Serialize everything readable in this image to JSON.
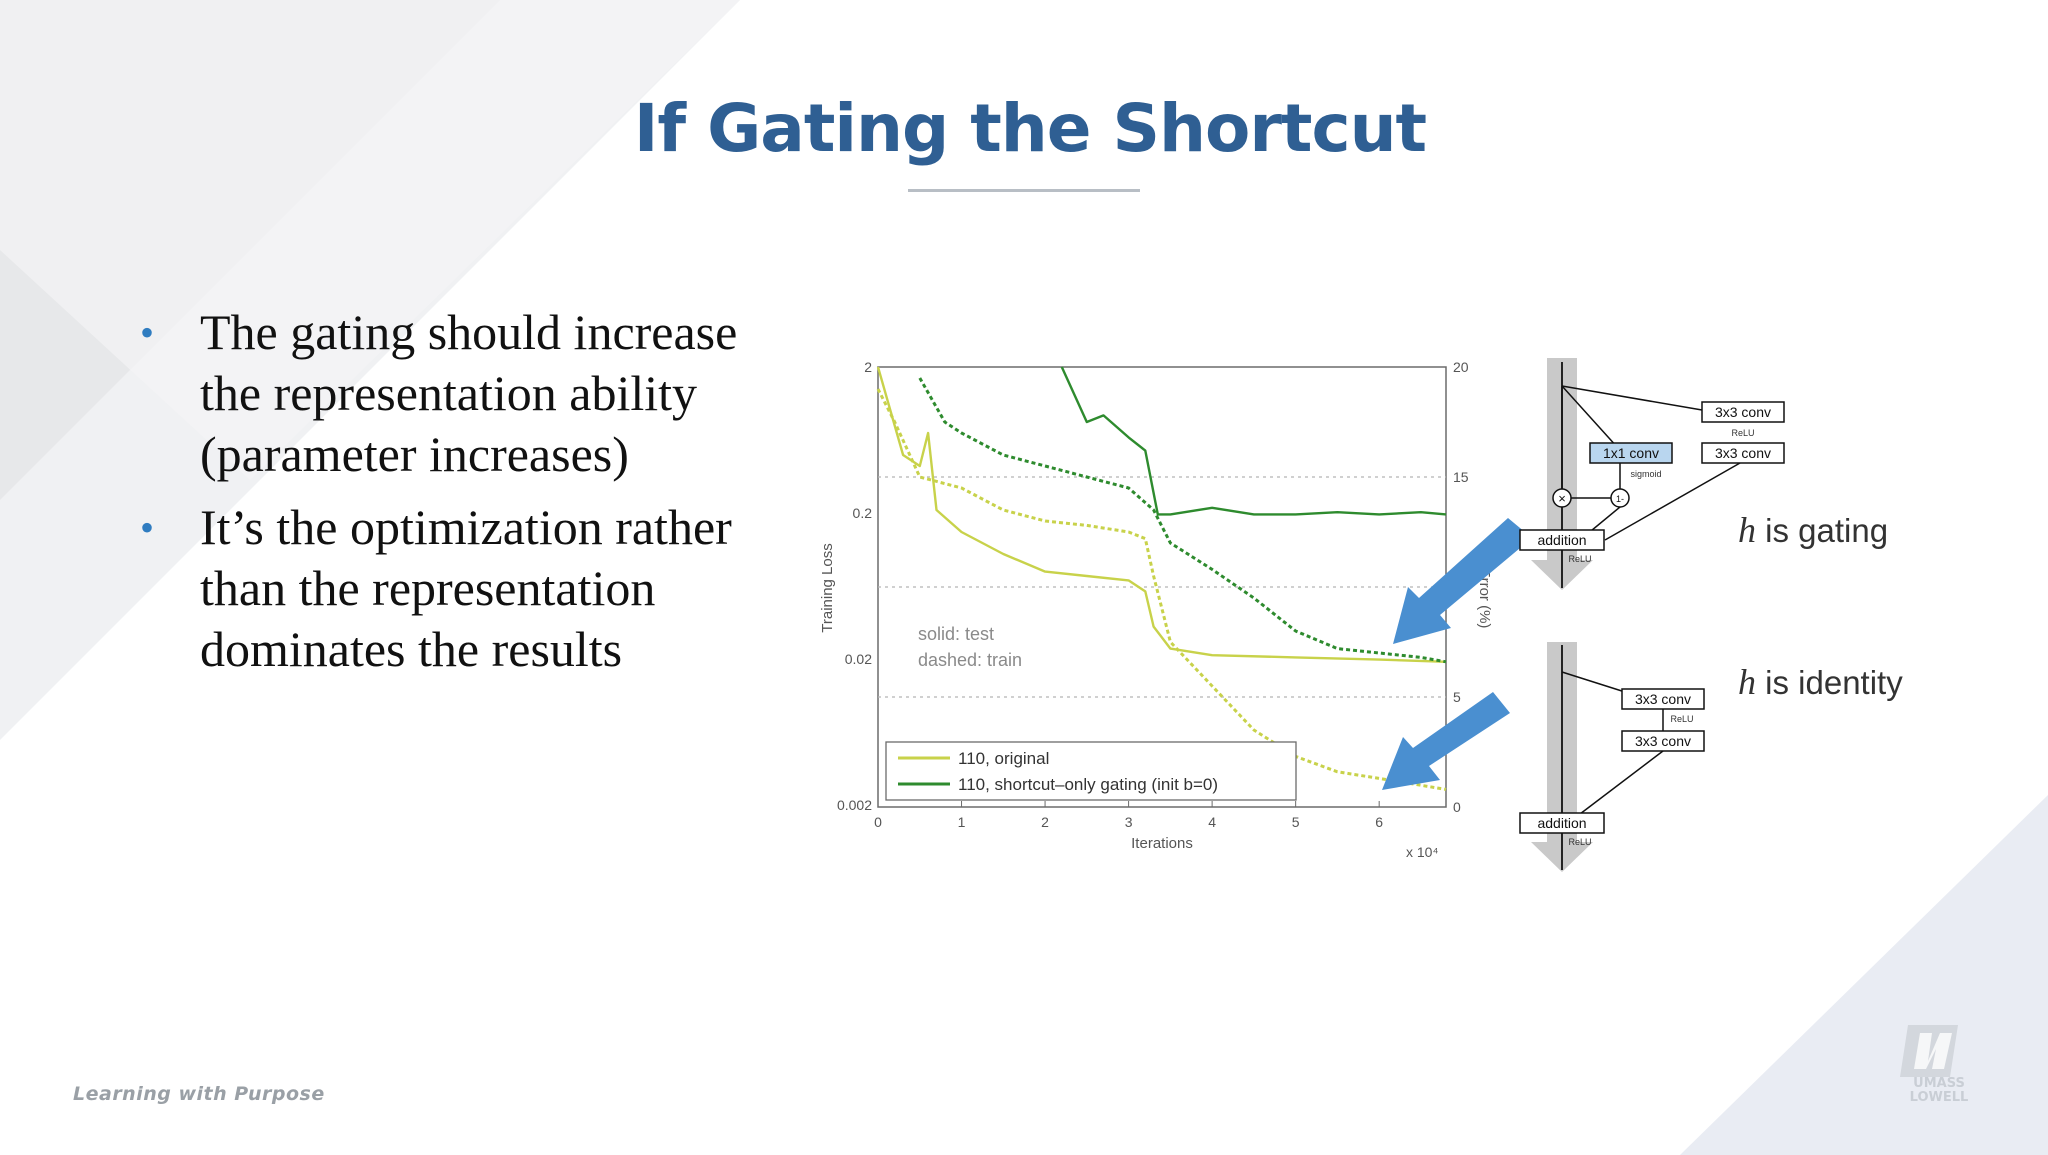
{
  "slide": {
    "title": "If Gating the Shortcut",
    "bullets": [
      "The gating should increase the representation ability (parameter increases)",
      "It’s the optimization rather than the representation dominates the results"
    ],
    "footer": "Learning with Purpose",
    "logo_text": "UMASS LOWELL",
    "colors": {
      "title": "#2f5f93",
      "bullet": "#2f7cc0",
      "arrow": "#4a8fd0",
      "original": "#c8d24a",
      "gating": "#2e8b2e"
    }
  },
  "chart_data": {
    "type": "line",
    "xlabel": "Iterations",
    "ylabel_left": "Training Loss",
    "ylabel_right": "Error (%)",
    "x_multiplier": "x 10⁴",
    "xlim": [
      0,
      6.8
    ],
    "xticks": [
      "0",
      "1",
      "2",
      "3",
      "4",
      "5",
      "6"
    ],
    "yticks_left": [
      "2",
      "0.2",
      "0.02",
      "0.002"
    ],
    "ylim_left": [
      0.002,
      2
    ],
    "yscale_left": "log",
    "yticks_right": [
      "20",
      "15",
      "10",
      "5",
      "0"
    ],
    "ylim_right": [
      0,
      20
    ],
    "annotation": [
      "solid: test",
      "dashed: train"
    ],
    "legend": [
      "110, original",
      "110, shortcut–only gating (init b=0)"
    ],
    "series": [
      {
        "name": "110, original",
        "style": "solid",
        "axis": "right",
        "x": [
          0,
          0.3,
          0.5,
          0.6,
          0.7,
          1.0,
          1.5,
          2.0,
          2.5,
          3.0,
          3.2,
          3.3,
          3.5,
          4.0,
          5.0,
          6.0,
          6.8
        ],
        "y": [
          20,
          16,
          15.5,
          17,
          13.5,
          12.5,
          11.5,
          10.7,
          10.5,
          10.3,
          9.8,
          8.2,
          7.2,
          6.9,
          6.8,
          6.7,
          6.6
        ]
      },
      {
        "name": "110, original",
        "style": "dashed",
        "axis": "right",
        "x": [
          0,
          0.2,
          0.5,
          1.0,
          1.5,
          2.0,
          2.5,
          3.0,
          3.2,
          3.3,
          3.5,
          4.0,
          4.5,
          5.0,
          5.5,
          6.0,
          6.8
        ],
        "y": [
          19,
          17.5,
          15,
          14.5,
          13.5,
          13.0,
          12.8,
          12.5,
          12.2,
          10.5,
          7.5,
          5.5,
          3.5,
          2.3,
          1.6,
          1.3,
          0.8
        ]
      },
      {
        "name": "110, shortcut–only gating (init b=0)",
        "style": "solid",
        "axis": "right",
        "x": [
          2.2,
          2.5,
          2.7,
          3.0,
          3.2,
          3.35,
          3.5,
          4.0,
          4.5,
          5.0,
          5.5,
          6.0,
          6.5,
          6.8
        ],
        "y": [
          20,
          17.5,
          17.8,
          16.8,
          16.2,
          13.3,
          13.3,
          13.6,
          13.3,
          13.3,
          13.4,
          13.3,
          13.4,
          13.3
        ]
      },
      {
        "name": "110, shortcut–only gating (init b=0)",
        "style": "dashed",
        "axis": "right",
        "x": [
          0.5,
          0.8,
          1.0,
          1.5,
          2.0,
          2.5,
          3.0,
          3.3,
          3.5,
          4.0,
          4.5,
          5.0,
          5.5,
          6.0,
          6.5,
          6.8
        ],
        "y": [
          19.5,
          17.5,
          17.0,
          16.0,
          15.5,
          15.0,
          14.5,
          13.5,
          12.0,
          10.8,
          9.5,
          8.0,
          7.2,
          7.0,
          6.8,
          6.6
        ]
      }
    ]
  },
  "diagrams": {
    "gating": {
      "label_h": "h",
      "label_rest": " is gating",
      "boxes": {
        "conv_a": "3x3 conv",
        "relu": "ReLU",
        "conv_b": "3x3 conv",
        "gate_conv": "1x1 conv",
        "sigmoid": "sigmoid",
        "times": "×",
        "one_minus": "1-",
        "addition": "addition",
        "relu_out": "ReLU"
      }
    },
    "identity": {
      "label_h": "h",
      "label_rest": " is identity",
      "boxes": {
        "conv_a": "3x3 conv",
        "relu": "ReLU",
        "conv_b": "3x3 conv",
        "addition": "addition",
        "relu_out": "ReLU"
      }
    }
  }
}
